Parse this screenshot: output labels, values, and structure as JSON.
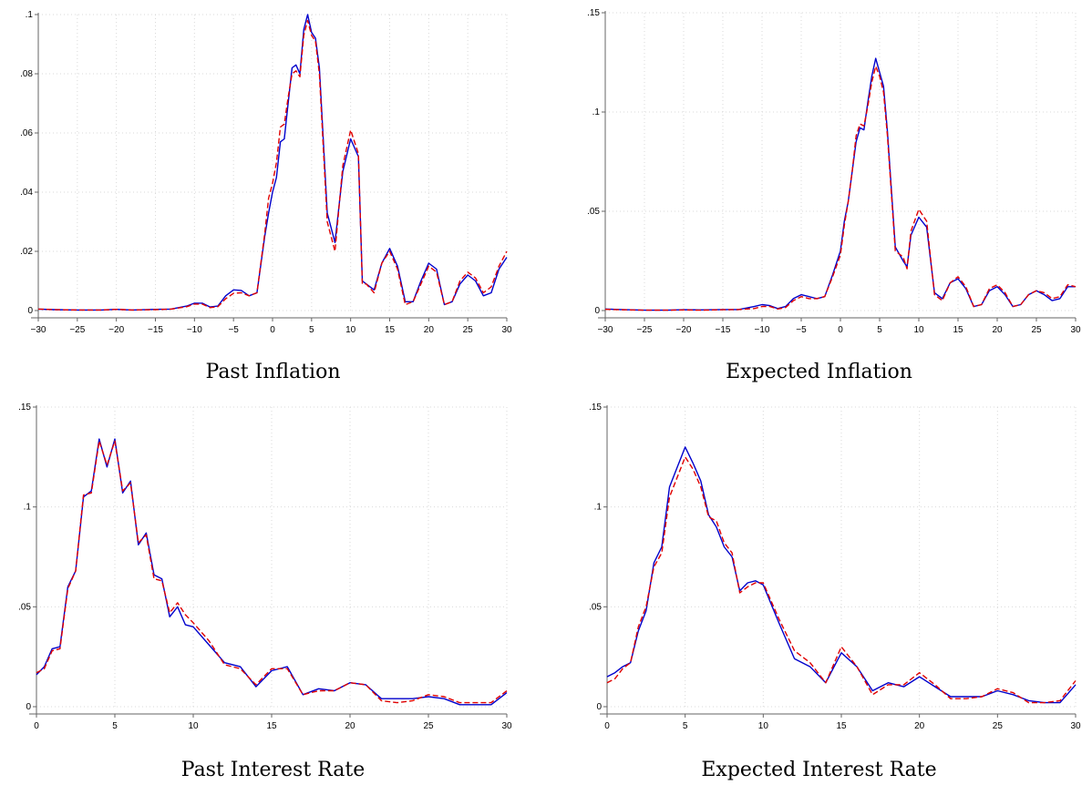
{
  "chart_data": [
    {
      "type": "line",
      "title": "Past Inflation",
      "xlim": [
        -30,
        30
      ],
      "ylim": [
        0,
        0.1
      ],
      "xticks": [
        -30,
        -25,
        -20,
        -15,
        -10,
        -5,
        0,
        5,
        10,
        15,
        20,
        25,
        30
      ],
      "xtick_labels": [
        "−30",
        "−25",
        "−20",
        "−15",
        "−10",
        "−5",
        "0",
        "5",
        "10",
        "15",
        "20",
        "25",
        "30"
      ],
      "yticks": [
        0,
        0.02,
        0.04,
        0.06,
        0.08,
        0.1
      ],
      "ytick_labels": [
        "0",
        ".02",
        ".04",
        ".06",
        ".08",
        ".1"
      ],
      "grid": true,
      "series": [
        {
          "color": "#0000cc",
          "style": "solid",
          "x": [
            -30,
            -28,
            -25,
            -22,
            -20,
            -18,
            -15,
            -13,
            -11,
            -10,
            -9,
            -8,
            -7,
            -6,
            -5,
            -4,
            -3,
            -2,
            -1,
            -0.5,
            0,
            0.5,
            1,
            1.5,
            2,
            2.5,
            3,
            3.5,
            4,
            4.5,
            5,
            5.5,
            6,
            7,
            8,
            9,
            10,
            11,
            11.5,
            12,
            13,
            14,
            15,
            16,
            17,
            18,
            19,
            20,
            21,
            22,
            23,
            24,
            25,
            26,
            27,
            28,
            29,
            30
          ],
          "values": [
            0.0005,
            0.0003,
            0.0002,
            0.0002,
            0.0004,
            0.0002,
            0.0004,
            0.0005,
            0.0015,
            0.0025,
            0.0025,
            0.0012,
            0.0015,
            0.005,
            0.007,
            0.0068,
            0.005,
            0.006,
            0.025,
            0.033,
            0.04,
            0.045,
            0.057,
            0.058,
            0.07,
            0.082,
            0.083,
            0.08,
            0.095,
            0.1,
            0.094,
            0.092,
            0.082,
            0.033,
            0.023,
            0.047,
            0.058,
            0.052,
            0.01,
            0.009,
            0.007,
            0.016,
            0.021,
            0.015,
            0.003,
            0.003,
            0.01,
            0.016,
            0.014,
            0.002,
            0.003,
            0.009,
            0.012,
            0.01,
            0.005,
            0.006,
            0.014,
            0.018
          ]
        },
        {
          "color": "#e00000",
          "style": "dashed",
          "x": [
            -30,
            -28,
            -25,
            -22,
            -20,
            -18,
            -15,
            -13,
            -11,
            -10,
            -9,
            -8,
            -7,
            -6,
            -5,
            -4,
            -3,
            -2,
            -1,
            -0.5,
            0,
            0.5,
            1,
            1.5,
            2,
            2.5,
            3,
            3.5,
            4,
            4.5,
            5,
            5.5,
            6,
            7,
            8,
            9,
            10,
            11,
            11.5,
            12,
            13,
            14,
            15,
            16,
            17,
            18,
            19,
            20,
            21,
            22,
            23,
            24,
            25,
            26,
            27,
            28,
            29,
            30
          ],
          "values": [
            0.0005,
            0.0003,
            0.0002,
            0.0002,
            0.0004,
            0.0002,
            0.0003,
            0.0005,
            0.0013,
            0.0022,
            0.0022,
            0.001,
            0.0013,
            0.004,
            0.0058,
            0.006,
            0.005,
            0.006,
            0.026,
            0.038,
            0.043,
            0.05,
            0.062,
            0.063,
            0.072,
            0.08,
            0.081,
            0.079,
            0.093,
            0.098,
            0.093,
            0.091,
            0.08,
            0.03,
            0.02,
            0.049,
            0.061,
            0.053,
            0.009,
            0.009,
            0.006,
            0.016,
            0.02,
            0.014,
            0.002,
            0.003,
            0.009,
            0.015,
            0.013,
            0.002,
            0.003,
            0.01,
            0.013,
            0.011,
            0.006,
            0.008,
            0.015,
            0.02
          ]
        }
      ]
    },
    {
      "type": "line",
      "title": "Expected Inflation",
      "xlim": [
        -30,
        30
      ],
      "ylim": [
        0,
        0.15
      ],
      "xticks": [
        -30,
        -25,
        -20,
        -15,
        -10,
        -5,
        0,
        5,
        10,
        15,
        20,
        25,
        30
      ],
      "xtick_labels": [
        "−30",
        "−25",
        "−20",
        "−15",
        "−10",
        "−5",
        "0",
        "5",
        "10",
        "15",
        "20",
        "25",
        "30"
      ],
      "yticks": [
        0,
        0.05,
        0.1,
        0.15
      ],
      "ytick_labels": [
        "0",
        ".05",
        ".1",
        ".15"
      ],
      "grid": true,
      "series": [
        {
          "color": "#0000cc",
          "style": "solid",
          "x": [
            -30,
            -28,
            -25,
            -22,
            -20,
            -18,
            -15,
            -13,
            -11,
            -10,
            -9,
            -8,
            -7,
            -6,
            -5,
            -4,
            -3,
            -2,
            -1,
            0,
            0.5,
            1,
            1.5,
            2,
            2.5,
            3,
            3.5,
            4,
            4.5,
            5,
            5.5,
            6,
            7,
            8,
            8.5,
            9,
            10,
            11,
            12,
            13,
            14,
            15,
            16,
            17,
            18,
            19,
            20,
            21,
            22,
            23,
            24,
            25,
            26,
            27,
            28,
            29,
            30
          ],
          "values": [
            0.0008,
            0.0005,
            0.0002,
            0.0002,
            0.0004,
            0.0003,
            0.0005,
            0.0005,
            0.002,
            0.003,
            0.0025,
            0.001,
            0.002,
            0.006,
            0.008,
            0.007,
            0.006,
            0.007,
            0.018,
            0.03,
            0.045,
            0.055,
            0.07,
            0.085,
            0.092,
            0.091,
            0.105,
            0.118,
            0.127,
            0.12,
            0.113,
            0.09,
            0.032,
            0.025,
            0.022,
            0.038,
            0.047,
            0.042,
            0.009,
            0.006,
            0.014,
            0.016,
            0.011,
            0.002,
            0.003,
            0.01,
            0.012,
            0.008,
            0.002,
            0.003,
            0.008,
            0.01,
            0.008,
            0.005,
            0.006,
            0.012,
            0.012
          ]
        },
        {
          "color": "#e00000",
          "style": "dashed",
          "x": [
            -30,
            -28,
            -25,
            -22,
            -20,
            -18,
            -15,
            -13,
            -11,
            -10,
            -9,
            -8,
            -7,
            -6,
            -5,
            -4,
            -3,
            -2,
            -1,
            0,
            0.5,
            1,
            1.5,
            2,
            2.5,
            3,
            3.5,
            4,
            4.5,
            5,
            5.5,
            6,
            7,
            8,
            8.5,
            9,
            10,
            11,
            12,
            13,
            14,
            15,
            16,
            17,
            18,
            19,
            20,
            21,
            22,
            23,
            24,
            25,
            26,
            27,
            28,
            29,
            30
          ],
          "values": [
            0.0006,
            0.0004,
            0.0002,
            0.0002,
            0.0003,
            0.0002,
            0.0004,
            0.0005,
            0.001,
            0.002,
            0.002,
            0.0008,
            0.0015,
            0.005,
            0.007,
            0.006,
            0.006,
            0.007,
            0.017,
            0.028,
            0.043,
            0.055,
            0.07,
            0.088,
            0.094,
            0.093,
            0.103,
            0.115,
            0.123,
            0.118,
            0.11,
            0.088,
            0.03,
            0.027,
            0.021,
            0.04,
            0.051,
            0.045,
            0.008,
            0.005,
            0.014,
            0.017,
            0.012,
            0.002,
            0.003,
            0.011,
            0.013,
            0.009,
            0.002,
            0.003,
            0.008,
            0.01,
            0.009,
            0.006,
            0.007,
            0.013,
            0.012
          ]
        }
      ]
    },
    {
      "type": "line",
      "title": "Past Interest Rate",
      "xlim": [
        0,
        30
      ],
      "ylim": [
        0,
        0.15
      ],
      "xticks": [
        0,
        5,
        10,
        15,
        20,
        25,
        30
      ],
      "xtick_labels": [
        "0",
        "5",
        "10",
        "15",
        "20",
        "25",
        "30"
      ],
      "yticks": [
        0,
        0.05,
        0.1,
        0.15
      ],
      "ytick_labels": [
        "0",
        ".05",
        ".1",
        ".15"
      ],
      "grid": true,
      "series": [
        {
          "color": "#0000cc",
          "style": "solid",
          "x": [
            0,
            0.5,
            1,
            1.5,
            2,
            2.5,
            3,
            3.5,
            4,
            4.5,
            5,
            5.5,
            6,
            6.5,
            7,
            7.5,
            8,
            8.5,
            9,
            9.5,
            10,
            11,
            12,
            13,
            14,
            15,
            16,
            17,
            18,
            19,
            20,
            21,
            22,
            23,
            24,
            25,
            26,
            27,
            28,
            29,
            30
          ],
          "values": [
            0.016,
            0.02,
            0.029,
            0.03,
            0.06,
            0.068,
            0.105,
            0.108,
            0.134,
            0.12,
            0.134,
            0.107,
            0.113,
            0.081,
            0.087,
            0.066,
            0.064,
            0.045,
            0.05,
            0.041,
            0.04,
            0.031,
            0.022,
            0.02,
            0.01,
            0.018,
            0.02,
            0.006,
            0.009,
            0.008,
            0.012,
            0.011,
            0.004,
            0.004,
            0.004,
            0.005,
            0.004,
            0.001,
            0.001,
            0.001,
            0.007
          ]
        },
        {
          "color": "#e00000",
          "style": "dashed",
          "x": [
            0,
            0.5,
            1,
            1.5,
            2,
            2.5,
            3,
            3.5,
            4,
            4.5,
            5,
            5.5,
            6,
            6.5,
            7,
            7.5,
            8,
            8.5,
            9,
            9.5,
            10,
            11,
            12,
            13,
            14,
            15,
            16,
            17,
            18,
            19,
            20,
            21,
            22,
            23,
            24,
            25,
            26,
            27,
            28,
            29,
            30
          ],
          "values": [
            0.017,
            0.019,
            0.028,
            0.029,
            0.059,
            0.068,
            0.106,
            0.107,
            0.133,
            0.121,
            0.133,
            0.108,
            0.112,
            0.082,
            0.086,
            0.064,
            0.063,
            0.047,
            0.052,
            0.046,
            0.042,
            0.033,
            0.021,
            0.019,
            0.011,
            0.019,
            0.019,
            0.006,
            0.008,
            0.008,
            0.012,
            0.011,
            0.003,
            0.002,
            0.003,
            0.006,
            0.005,
            0.002,
            0.002,
            0.002,
            0.008
          ]
        }
      ]
    },
    {
      "type": "line",
      "title": "Expected Interest Rate",
      "xlim": [
        0,
        30
      ],
      "ylim": [
        0,
        0.15
      ],
      "xticks": [
        0,
        5,
        10,
        15,
        20,
        25,
        30
      ],
      "xtick_labels": [
        "0",
        "5",
        "10",
        "15",
        "20",
        "25",
        "30"
      ],
      "yticks": [
        0,
        0.05,
        0.1,
        0.15
      ],
      "ytick_labels": [
        "0",
        ".05",
        ".1",
        ".15"
      ],
      "grid": true,
      "series": [
        {
          "color": "#0000cc",
          "style": "solid",
          "x": [
            0,
            0.5,
            1,
            1.5,
            2,
            2.5,
            3,
            3.5,
            4,
            4.5,
            5,
            5.5,
            6,
            6.5,
            7,
            7.5,
            8,
            8.5,
            9,
            9.5,
            10,
            11,
            12,
            13,
            14,
            15,
            16,
            17,
            18,
            19,
            20,
            21,
            22,
            23,
            24,
            25,
            26,
            27,
            28,
            29,
            30
          ],
          "values": [
            0.015,
            0.017,
            0.02,
            0.022,
            0.038,
            0.048,
            0.072,
            0.08,
            0.11,
            0.12,
            0.13,
            0.122,
            0.113,
            0.096,
            0.09,
            0.08,
            0.075,
            0.058,
            0.062,
            0.063,
            0.061,
            0.042,
            0.024,
            0.02,
            0.012,
            0.027,
            0.02,
            0.008,
            0.012,
            0.01,
            0.015,
            0.01,
            0.005,
            0.005,
            0.005,
            0.008,
            0.006,
            0.003,
            0.002,
            0.002,
            0.011
          ]
        },
        {
          "color": "#e00000",
          "style": "dashed",
          "x": [
            0,
            0.5,
            1,
            1.5,
            2,
            2.5,
            3,
            3.5,
            4,
            4.5,
            5,
            5.5,
            6,
            6.5,
            7,
            7.5,
            8,
            8.5,
            9,
            9.5,
            10,
            11,
            12,
            13,
            14,
            15,
            16,
            17,
            18,
            19,
            20,
            21,
            22,
            23,
            24,
            25,
            26,
            27,
            28,
            29,
            30
          ],
          "values": [
            0.012,
            0.014,
            0.019,
            0.022,
            0.04,
            0.05,
            0.07,
            0.077,
            0.105,
            0.115,
            0.125,
            0.119,
            0.11,
            0.095,
            0.093,
            0.082,
            0.077,
            0.057,
            0.06,
            0.062,
            0.062,
            0.044,
            0.028,
            0.022,
            0.012,
            0.03,
            0.02,
            0.006,
            0.011,
            0.011,
            0.017,
            0.011,
            0.004,
            0.004,
            0.005,
            0.009,
            0.007,
            0.002,
            0.002,
            0.003,
            0.013
          ]
        }
      ]
    }
  ]
}
